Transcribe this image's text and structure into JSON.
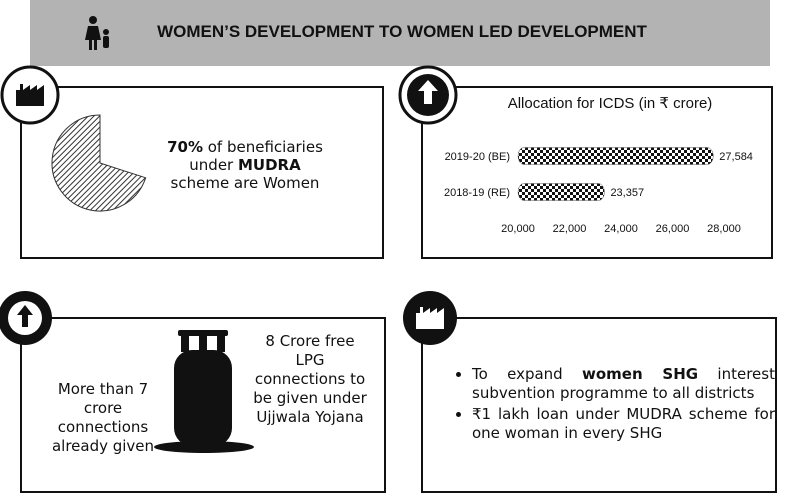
{
  "header": {
    "title": "WOMEN’S DEVELOPMENT TO WOMEN LED DEVELOPMENT"
  },
  "mudra": {
    "share": {
      "value": 70,
      "label": "70%"
    },
    "text_1": " of beneficiaries under ",
    "text_bold": "MUDRA",
    "text_2": " scheme are Women"
  },
  "icds_chart": {
    "type": "bar",
    "title": "Allocation for ICDS (in ₹ crore)",
    "categories": [
      "2019-20 (BE)",
      "2018-19 (RE)"
    ],
    "values": [
      27584,
      23357
    ],
    "value_labels": [
      "27,584",
      "23,357"
    ],
    "xlim": [
      20000,
      28000
    ],
    "xticks": [
      {
        "value": 20000,
        "label": "20,000"
      },
      {
        "value": 22000,
        "label": "22,000"
      },
      {
        "value": 24000,
        "label": "24,000"
      },
      {
        "value": 26000,
        "label": "26,000"
      },
      {
        "value": 28000,
        "label": "28,000"
      }
    ]
  },
  "ujjwala": {
    "given": "More than 7 crore connections already given",
    "planned": "8 Crore free LPG connections to be given under Ujjwala Yojana"
  },
  "shg": {
    "items": [
      {
        "text_1": "To expand ",
        "bold": "women SHG",
        "text_2": " interest subvention programme to all districts"
      },
      {
        "text_1": "₹1 lakh loan under MUDRA scheme for one woman in every SHG"
      }
    ]
  }
}
